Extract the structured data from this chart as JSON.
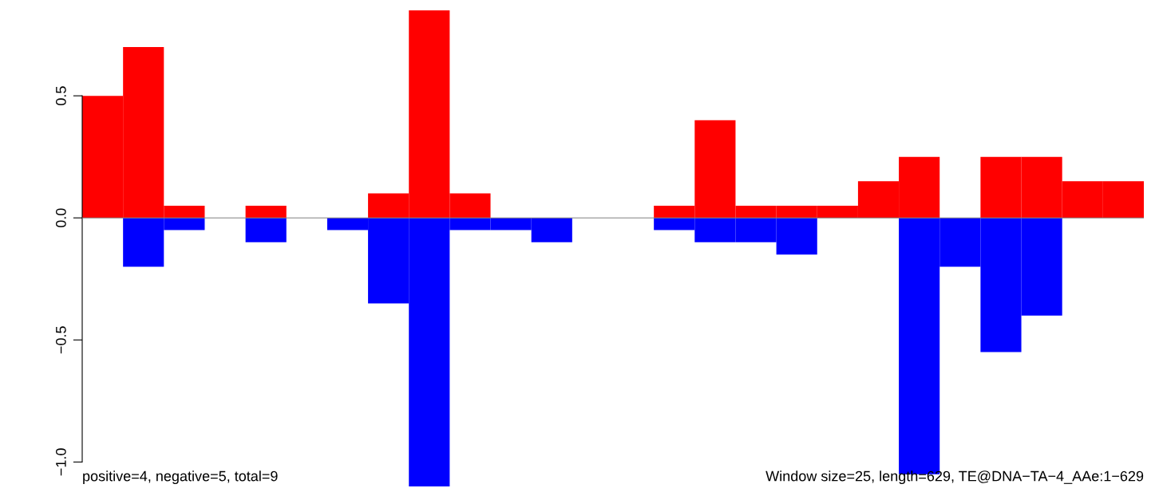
{
  "chart_data": {
    "type": "bar",
    "categories": [
      null,
      null,
      null,
      null,
      null,
      null,
      null,
      null,
      null,
      null,
      null,
      null,
      null,
      null,
      null,
      null,
      null,
      null,
      null,
      null,
      null,
      null,
      null,
      null,
      null,
      null
    ],
    "series": [
      {
        "color": "#ff0000",
        "values": [
          0.5,
          0.7,
          0.05,
          0,
          0.05,
          0,
          0,
          0.1,
          0.85,
          0.1,
          0,
          0,
          0,
          0,
          0.05,
          0.4,
          0.05,
          0.05,
          0.05,
          0.15,
          0.25,
          0,
          0.25,
          0.25,
          0.15,
          0.15
        ]
      },
      {
        "color": "#0000ff",
        "values": [
          0,
          -0.2,
          -0.05,
          0,
          -0.1,
          0,
          -0.05,
          -0.35,
          -1.1,
          -0.05,
          -0.05,
          -0.1,
          0,
          0,
          -0.05,
          -0.1,
          -0.1,
          -0.15,
          0,
          0,
          -1.05,
          -0.2,
          -0.55,
          -0.4,
          0,
          0
        ]
      }
    ],
    "ylim": [
      -1.1,
      0.85
    ],
    "yticks": [
      {
        "value": -1.0,
        "label": "−1.0"
      },
      {
        "value": -0.5,
        "label": "−0.5"
      },
      {
        "value": 0.0,
        "label": "0.0"
      },
      {
        "value": 0.5,
        "label": "0.5"
      }
    ],
    "ref_lines": [
      {
        "axis": "y",
        "value": 0,
        "color": "#808080"
      }
    ],
    "annotations": [
      "positive=4, negative=5, total=9",
      "Window size=25, length=629, TE@DNA−TA−4_AAe:1−629"
    ],
    "stacked": true,
    "grid": false,
    "legend": false
  }
}
